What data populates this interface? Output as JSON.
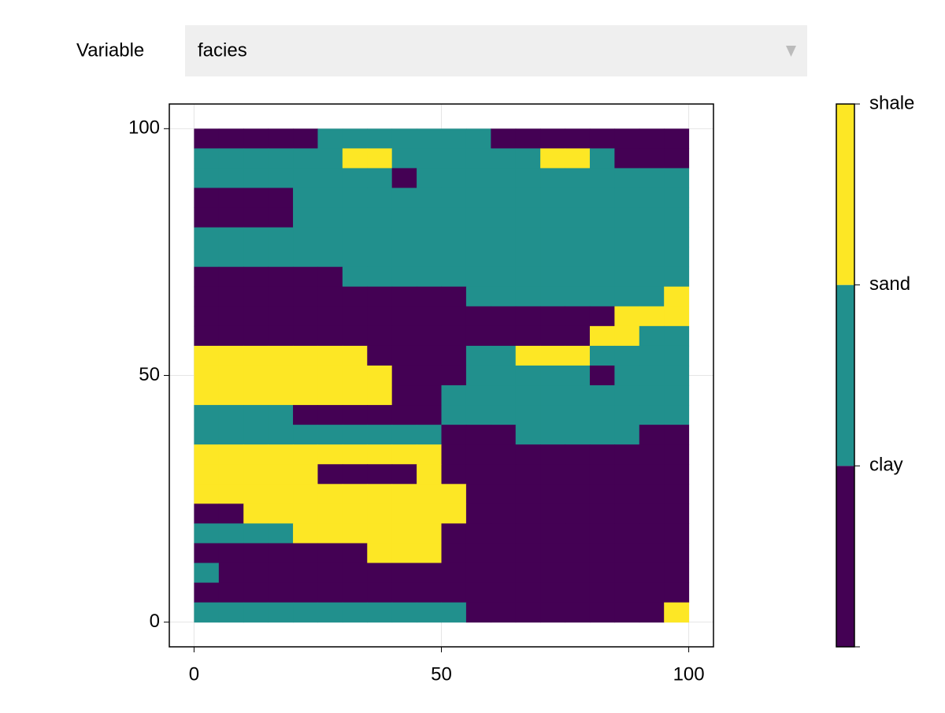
{
  "control": {
    "label": "Variable",
    "value": "facies"
  },
  "chart_data": {
    "type": "heatmap",
    "x": [
      2.5,
      7.5,
      12.5,
      17.5,
      22.5,
      27.5,
      32.5,
      37.5,
      42.5,
      47.5,
      52.5,
      57.5,
      62.5,
      67.5,
      72.5,
      77.5,
      82.5,
      87.5,
      92.5,
      97.5
    ],
    "y": [
      98,
      94,
      90,
      86,
      82,
      78,
      74,
      70,
      66,
      62,
      58,
      54,
      50,
      46,
      42,
      38,
      34,
      30,
      26,
      22,
      18,
      14,
      10,
      6,
      2
    ],
    "z": [
      [
        0,
        0,
        0,
        0,
        0,
        1,
        1,
        1,
        1,
        1,
        1,
        1,
        0,
        0,
        0,
        0,
        0,
        0,
        0,
        0
      ],
      [
        1,
        1,
        1,
        1,
        1,
        1,
        2,
        2,
        1,
        1,
        1,
        1,
        1,
        1,
        2,
        2,
        1,
        0,
        0,
        0
      ],
      [
        1,
        1,
        1,
        1,
        1,
        1,
        1,
        1,
        0,
        1,
        1,
        1,
        1,
        1,
        1,
        1,
        1,
        1,
        1,
        1
      ],
      [
        0,
        0,
        0,
        0,
        1,
        1,
        1,
        1,
        1,
        1,
        1,
        1,
        1,
        1,
        1,
        1,
        1,
        1,
        1,
        1
      ],
      [
        0,
        0,
        0,
        0,
        1,
        1,
        1,
        1,
        1,
        1,
        1,
        1,
        1,
        1,
        1,
        1,
        1,
        1,
        1,
        1
      ],
      [
        1,
        1,
        1,
        1,
        1,
        1,
        1,
        1,
        1,
        1,
        1,
        1,
        1,
        1,
        1,
        1,
        1,
        1,
        1,
        1
      ],
      [
        1,
        1,
        1,
        1,
        1,
        1,
        1,
        1,
        1,
        1,
        1,
        1,
        1,
        1,
        1,
        1,
        1,
        1,
        1,
        1
      ],
      [
        0,
        0,
        0,
        0,
        0,
        0,
        1,
        1,
        1,
        1,
        1,
        1,
        1,
        1,
        1,
        1,
        1,
        1,
        1,
        1
      ],
      [
        0,
        0,
        0,
        0,
        0,
        0,
        0,
        0,
        0,
        0,
        0,
        1,
        1,
        1,
        1,
        1,
        1,
        1,
        1,
        2
      ],
      [
        0,
        0,
        0,
        0,
        0,
        0,
        0,
        0,
        0,
        0,
        0,
        0,
        0,
        0,
        0,
        0,
        0,
        2,
        2,
        2
      ],
      [
        0,
        0,
        0,
        0,
        0,
        0,
        0,
        0,
        0,
        0,
        0,
        0,
        0,
        0,
        0,
        0,
        2,
        2,
        1,
        1
      ],
      [
        2,
        2,
        2,
        2,
        2,
        2,
        2,
        0,
        0,
        0,
        0,
        1,
        1,
        2,
        2,
        2,
        1,
        1,
        1,
        1
      ],
      [
        2,
        2,
        2,
        2,
        2,
        2,
        2,
        2,
        0,
        0,
        0,
        1,
        1,
        1,
        1,
        1,
        0,
        1,
        1,
        1
      ],
      [
        2,
        2,
        2,
        2,
        2,
        2,
        2,
        2,
        0,
        0,
        1,
        1,
        1,
        1,
        1,
        1,
        1,
        1,
        1,
        1
      ],
      [
        1,
        1,
        1,
        1,
        0,
        0,
        0,
        0,
        0,
        0,
        1,
        1,
        1,
        1,
        1,
        1,
        1,
        1,
        1,
        1
      ],
      [
        1,
        1,
        1,
        1,
        1,
        1,
        1,
        1,
        1,
        1,
        0,
        0,
        0,
        1,
        1,
        1,
        1,
        1,
        0,
        0
      ],
      [
        2,
        2,
        2,
        2,
        2,
        2,
        2,
        2,
        2,
        2,
        0,
        0,
        0,
        0,
        0,
        0,
        0,
        0,
        0,
        0
      ],
      [
        2,
        2,
        2,
        2,
        2,
        0,
        0,
        0,
        0,
        2,
        0,
        0,
        0,
        0,
        0,
        0,
        0,
        0,
        0,
        0
      ],
      [
        2,
        2,
        2,
        2,
        2,
        2,
        2,
        2,
        2,
        2,
        2,
        0,
        0,
        0,
        0,
        0,
        0,
        0,
        0,
        0
      ],
      [
        0,
        0,
        2,
        2,
        2,
        2,
        2,
        2,
        2,
        2,
        2,
        0,
        0,
        0,
        0,
        0,
        0,
        0,
        0,
        0
      ],
      [
        1,
        1,
        1,
        1,
        2,
        2,
        2,
        2,
        2,
        2,
        0,
        0,
        0,
        0,
        0,
        0,
        0,
        0,
        0,
        0
      ],
      [
        0,
        0,
        0,
        0,
        0,
        0,
        0,
        2,
        2,
        2,
        0,
        0,
        0,
        0,
        0,
        0,
        0,
        0,
        0,
        0
      ],
      [
        1,
        0,
        0,
        0,
        0,
        0,
        0,
        0,
        0,
        0,
        0,
        0,
        0,
        0,
        0,
        0,
        0,
        0,
        0,
        0
      ],
      [
        0,
        0,
        0,
        0,
        0,
        0,
        0,
        0,
        0,
        0,
        0,
        0,
        0,
        0,
        0,
        0,
        0,
        0,
        0,
        0
      ],
      [
        1,
        1,
        1,
        1,
        1,
        1,
        1,
        1,
        1,
        1,
        1,
        0,
        0,
        0,
        0,
        0,
        0,
        0,
        0,
        2
      ]
    ],
    "colors": [
      "#440154",
      "#21908d",
      "#fde725"
    ],
    "clim": [
      0,
      3
    ],
    "cticks": [
      {
        "value": 1,
        "label": "clay"
      },
      {
        "value": 2,
        "label": "sand"
      },
      {
        "value": 3,
        "label": "shale"
      }
    ],
    "xlim": [
      -5,
      105
    ],
    "ylim": [
      -5,
      105
    ],
    "xticks": [
      0,
      50,
      100
    ],
    "yticks": [
      0,
      50,
      100
    ],
    "grid": true
  }
}
